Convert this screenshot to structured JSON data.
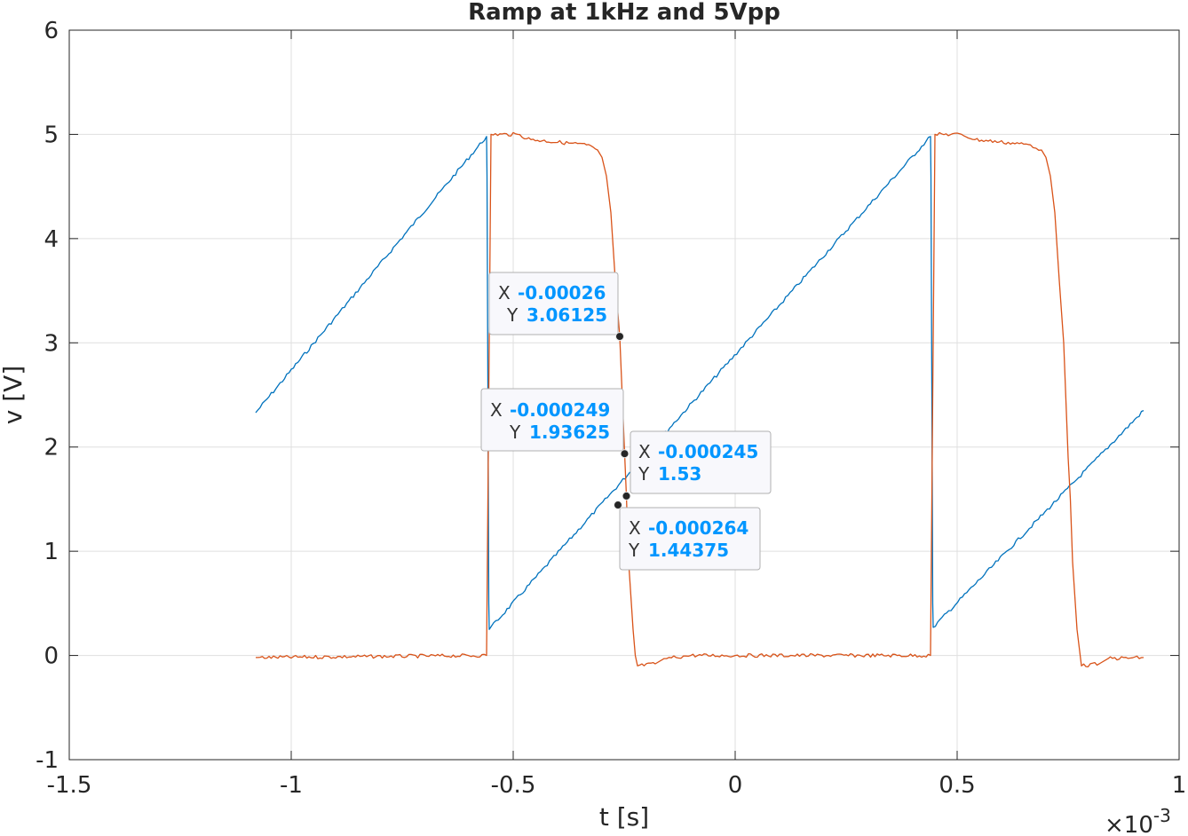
{
  "chart_data": {
    "type": "line",
    "title": "Ramp at 1kHz and 5Vpp",
    "xlabel": "t [s]",
    "ylabel": "v [V]",
    "x_exponent_label": "×10",
    "x_exponent_power": "-3",
    "xlim": [
      -0.0015,
      0.001
    ],
    "ylim": [
      -1,
      6
    ],
    "grid": true,
    "x_tick_values": [
      -0.0015,
      -0.001,
      -0.0005,
      0,
      0.0005,
      0.001
    ],
    "x_tick_labels": [
      "-1.5",
      "-1",
      "-0.5",
      "0",
      "0.5",
      "1"
    ],
    "y_tick_values": [
      -1,
      0,
      1,
      2,
      3,
      4,
      5,
      6
    ],
    "y_tick_labels": [
      "-1",
      "0",
      "1",
      "2",
      "3",
      "4",
      "5",
      "6"
    ],
    "series": [
      {
        "color": "#0072BD",
        "x": [
          -0.00108,
          -0.00056,
          -0.000559,
          -0.000555,
          -0.000554,
          0.00044,
          0.000441,
          0.000445,
          0.000446,
          0.00092
        ],
        "y": [
          2.33,
          4.98,
          4.6,
          0.5,
          0.25,
          4.98,
          4.6,
          0.5,
          0.27,
          2.35
        ]
      },
      {
        "color": "#D95319",
        "x": [
          -0.00108,
          -0.00056,
          -0.000555,
          -0.00055,
          -0.00049,
          -0.00046,
          -0.000335,
          -0.00031,
          -0.0003,
          -0.00029,
          -0.00028,
          -0.00027,
          -0.00026,
          -0.000249,
          -0.000245,
          -0.00024,
          -0.00023,
          -0.000225,
          -0.00022,
          -0.00018,
          -0.00016,
          -0.0001,
          0.0,
          0.00044,
          0.000445,
          0.00045,
          0.00051,
          0.00054,
          0.000665,
          0.00069,
          0.0007,
          0.00071,
          0.00072,
          0.00073,
          0.00074,
          0.00075,
          0.000755,
          0.00076,
          0.00077,
          0.00078,
          0.00082,
          0.00084,
          0.00092
        ],
        "y": [
          -0.02,
          0.0,
          2.5,
          5.0,
          5.0,
          4.95,
          4.9,
          4.85,
          4.78,
          4.6,
          4.25,
          3.6,
          3.06125,
          1.93625,
          1.53,
          0.9,
          0.25,
          0.0,
          -0.1,
          -0.08,
          -0.03,
          0.0,
          0.0,
          0.0,
          2.5,
          5.0,
          5.0,
          4.95,
          4.9,
          4.85,
          4.78,
          4.6,
          4.25,
          3.6,
          3.0,
          1.9,
          1.5,
          0.9,
          0.25,
          -0.1,
          -0.08,
          -0.03,
          -0.02
        ]
      }
    ],
    "datatips": [
      {
        "x_label": "X",
        "y_label": "Y",
        "x_value": "-0.00026",
        "y_value": "3.06125",
        "x": -0.00026,
        "y": 3.06125
      },
      {
        "x_label": "X",
        "y_label": "Y",
        "x_value": "-0.000249",
        "y_value": "1.93625",
        "x": -0.000249,
        "y": 1.93625
      },
      {
        "x_label": "X",
        "y_label": "Y",
        "x_value": "-0.000245",
        "y_value": "1.53",
        "x": -0.000245,
        "y": 1.53
      },
      {
        "x_label": "X",
        "y_label": "Y",
        "x_value": "-0.000264",
        "y_value": "1.44375",
        "x": -0.000264,
        "y": 1.44375
      }
    ],
    "datatip_value_color": "#0096FF"
  }
}
